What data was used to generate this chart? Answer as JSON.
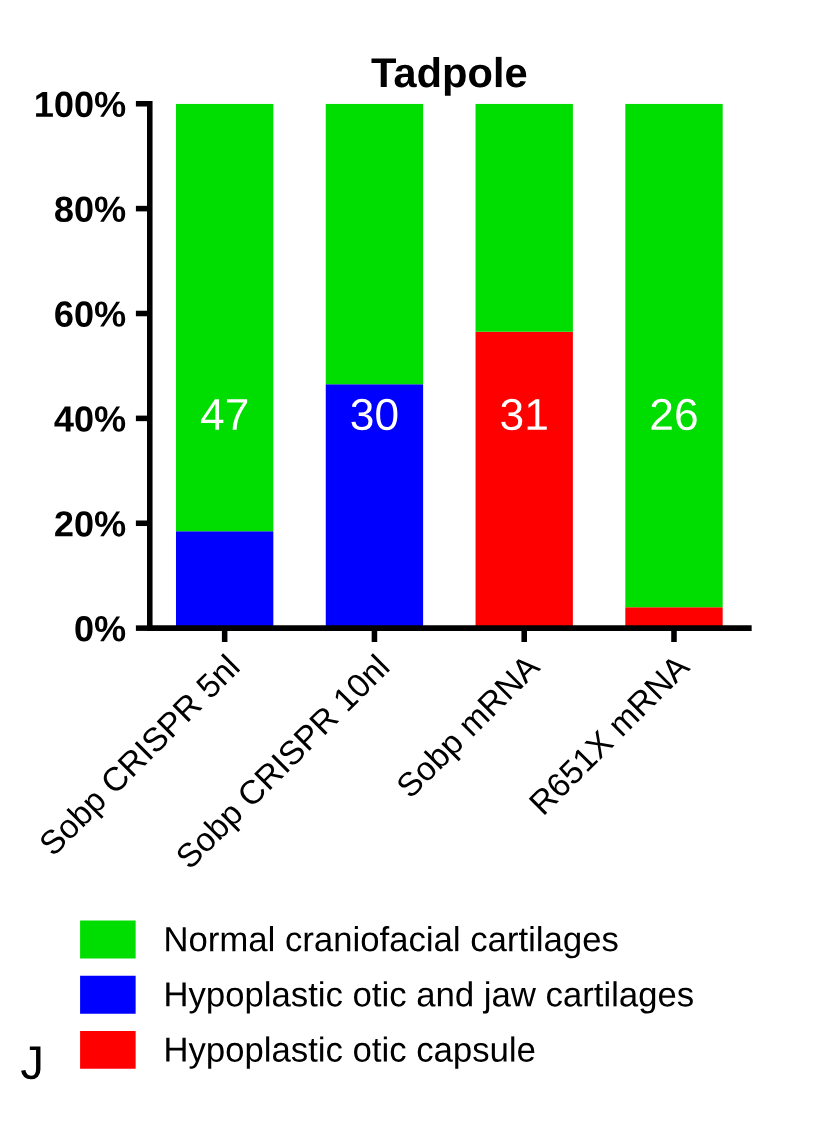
{
  "chart_data": {
    "type": "bar",
    "title": "Tadpole",
    "stacked": true,
    "categories": [
      "Sobp CRISPR 5nl",
      "Sobp CRISPR 10nl",
      "Sobp mRNA",
      "R651X mRNA"
    ],
    "series": [
      {
        "name": "Hypoplastic otic capsule",
        "color": "#ff0000",
        "values": [
          null,
          null,
          56.5,
          4
        ]
      },
      {
        "name": "Hypoplastic otic and jaw cartilages",
        "color": "#0000ff",
        "values": [
          18.5,
          46.5,
          null,
          null
        ]
      },
      {
        "name": "Normal craniofacial cartilages",
        "color": "#00dd00",
        "values": [
          81.5,
          53.5,
          43.5,
          96
        ]
      }
    ],
    "ylim": [
      0,
      100
    ],
    "yticks": [
      {
        "value": 0,
        "label": "0%"
      },
      {
        "value": 20,
        "label": "20%"
      },
      {
        "value": 40,
        "label": "40%"
      },
      {
        "value": 60,
        "label": "60%"
      },
      {
        "value": 80,
        "label": "80%"
      },
      {
        "value": 100,
        "label": "100%"
      }
    ],
    "grid": false,
    "legend": "bottom",
    "annotations": [
      "47",
      "30",
      "31",
      "26",
      "J"
    ]
  }
}
